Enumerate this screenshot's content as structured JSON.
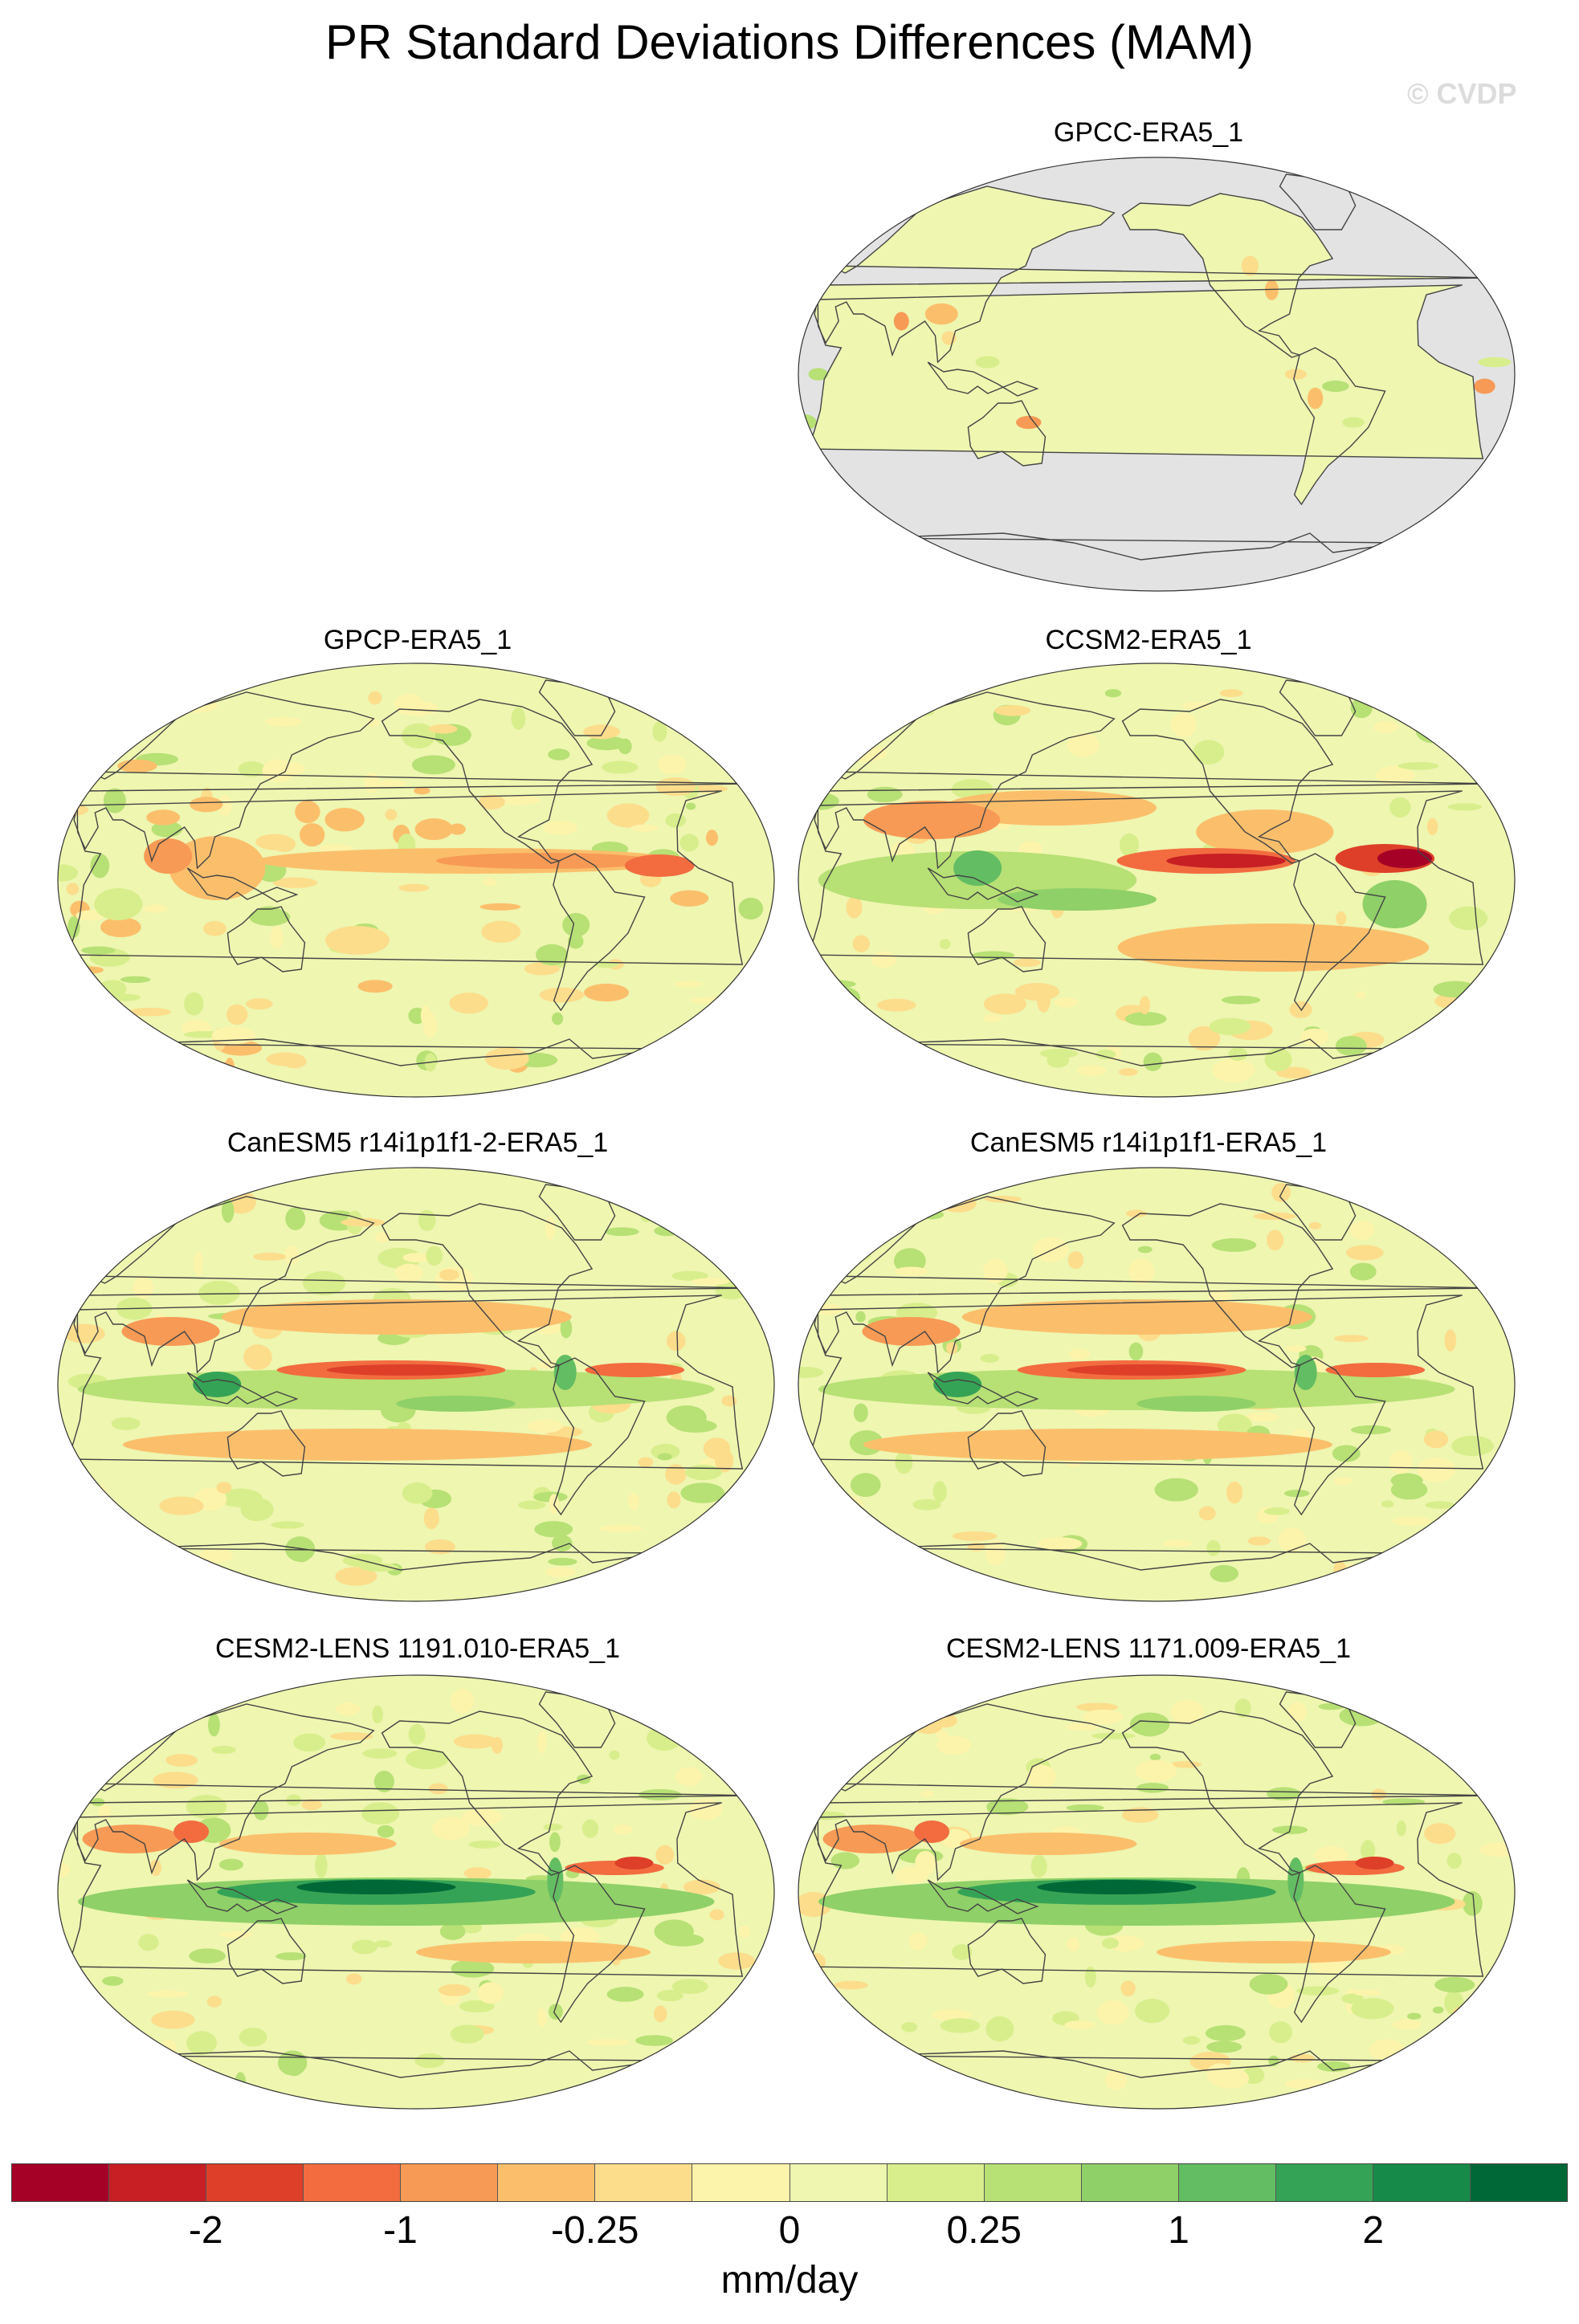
{
  "title": "PR Standard Deviations Differences (MAM)",
  "watermark": "© CVDP",
  "panels": [
    {
      "id": "p0",
      "title": "GPCC-ERA5_1",
      "variant": "obs-land",
      "missing_ocean": true
    },
    {
      "id": "p1",
      "title": "GPCP-ERA5_1",
      "variant": "obs-global"
    },
    {
      "id": "p2",
      "title": "CCSM2-ERA5_1",
      "variant": "ccsm2"
    },
    {
      "id": "p3",
      "title": "CanESM5 r14i1p1f1-2-ERA5_1",
      "variant": "canesm"
    },
    {
      "id": "p4",
      "title": "CanESM5 r14i1p1f1-ERA5_1",
      "variant": "canesm"
    },
    {
      "id": "p5",
      "title": "CESM2-LENS 1191.010-ERA5_1",
      "variant": "cesm"
    },
    {
      "id": "p6",
      "title": "CESM2-LENS 1171.009-ERA5_1",
      "variant": "cesm"
    }
  ],
  "colorbar": {
    "units": "mm/day",
    "colors": [
      "#a50026",
      "#c71f24",
      "#dd3f29",
      "#f26c40",
      "#f79a55",
      "#fbbf6c",
      "#fcdd8c",
      "#fdf4ab",
      "#eef6b0",
      "#d8ee8c",
      "#b7e075",
      "#8fd068",
      "#63bd62",
      "#35a356",
      "#168a48",
      "#006837"
    ],
    "ticks": [
      "-2",
      "-1",
      "-0.25",
      "0",
      "0.25",
      "1",
      "2"
    ]
  }
}
